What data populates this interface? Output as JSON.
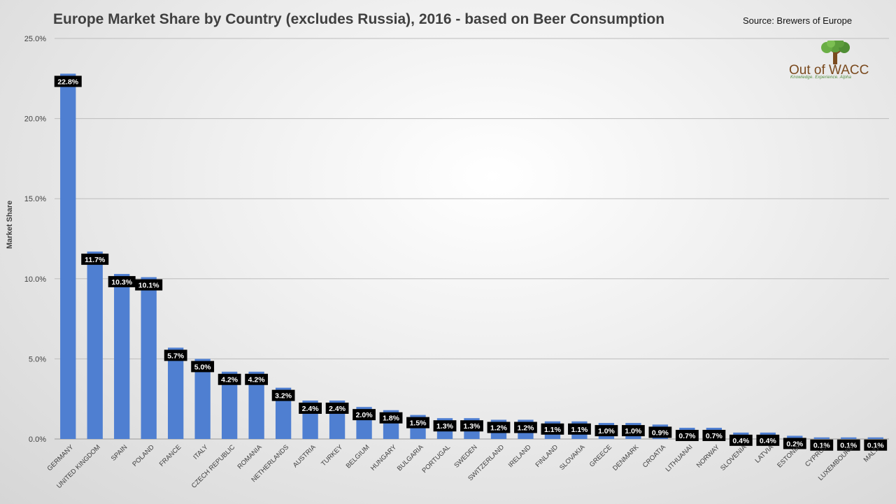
{
  "header": {
    "title": "Europe Market Share by Country (excludes Russia), 2016 - based on Beer Consumption",
    "source": "Source: Brewers of Europe"
  },
  "logo": {
    "brand": "Out of WACC",
    "tagline": "Knowledge. Experience. Alpha"
  },
  "chart_data": {
    "type": "bar",
    "title": "Europe Market Share by Country (excludes Russia), 2016 - based on Beer Consumption",
    "ylabel": "Market Share",
    "xlabel": "",
    "ylim": [
      0,
      25
    ],
    "yticks": [
      "0.0%",
      "5.0%",
      "10.0%",
      "15.0%",
      "20.0%",
      "25.0%"
    ],
    "grid": true,
    "bar_color": "#4f7fd1",
    "categories": [
      "GERMANY",
      "UNITED KINGDOM",
      "SPAIN",
      "POLAND",
      "FRANCE",
      "ITALY",
      "CZECH REPUBLIC",
      "ROMANIA",
      "NETHERLANDS",
      "AUSTRIA",
      "TURKEY",
      "BELGIUM",
      "HUNGARY",
      "BULGARIA",
      "PORTUGAL",
      "SWEDEN",
      "SWITZERLAND",
      "IRELAND",
      "FINLAND",
      "SLOVAKIA",
      "GREECE",
      "DENMARK",
      "CROATIA",
      "LITHUANAI",
      "NORWAY",
      "SLOVENIA",
      "LATVIA",
      "ESTONIA",
      "CYPRUS",
      "LUXEMBOURG",
      "MALTA"
    ],
    "values": [
      22.8,
      11.7,
      10.3,
      10.1,
      5.7,
      5.0,
      4.2,
      4.2,
      3.2,
      2.4,
      2.4,
      2.0,
      1.8,
      1.5,
      1.3,
      1.3,
      1.2,
      1.2,
      1.1,
      1.1,
      1.0,
      1.0,
      0.9,
      0.7,
      0.7,
      0.4,
      0.4,
      0.2,
      0.1,
      0.1,
      0.1
    ],
    "data_labels": [
      "22.8%",
      "11.7%",
      "10.3%",
      "10.1%",
      "5.7%",
      "5.0%",
      "4.2%",
      "4.2%",
      "3.2%",
      "2.4%",
      "2.4%",
      "2.0%",
      "1.8%",
      "1.5%",
      "1.3%",
      "1.3%",
      "1.2%",
      "1.2%",
      "1.1%",
      "1.1%",
      "1.0%",
      "1.0%",
      "0.9%",
      "0.7%",
      "0.7%",
      "0.4%",
      "0.4%",
      "0.2%",
      "0.1%",
      "0.1%",
      "0.1%"
    ]
  }
}
